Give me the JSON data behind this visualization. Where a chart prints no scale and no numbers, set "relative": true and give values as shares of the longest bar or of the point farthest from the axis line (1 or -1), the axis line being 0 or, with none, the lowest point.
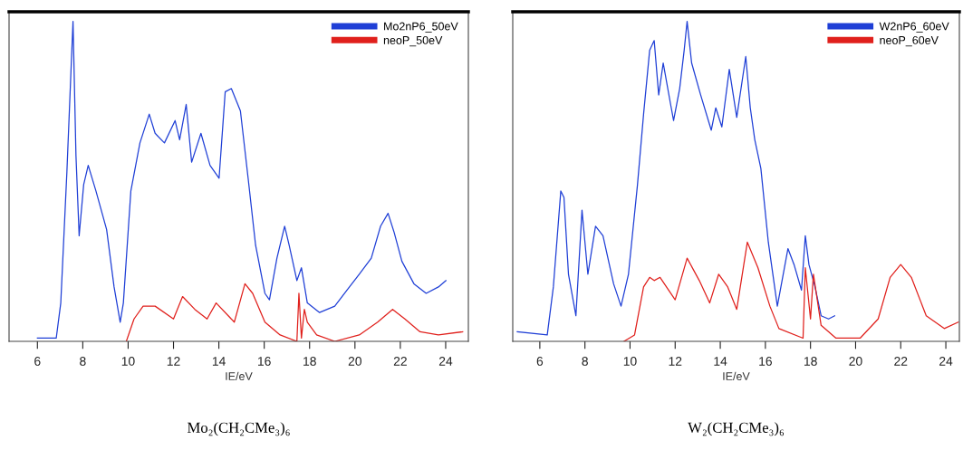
{
  "chart_data": [
    {
      "type": "line",
      "relative": true,
      "xlabel": "IE/eV",
      "annotations": [
        "Mo₂(CH₂CMe₃)₆"
      ],
      "xlim": [
        4.75,
        25.0
      ],
      "xticks": [
        6,
        8,
        10,
        12,
        14,
        16,
        18,
        20,
        22,
        24
      ],
      "legend": "top right",
      "grid": false,
      "marker": "none",
      "line_style": "solid",
      "series": [
        {
          "name": "Mo2nP6_50eV",
          "color": "#1f3fd6",
          "x": [
            6.0,
            6.83,
            7.03,
            7.3,
            7.5,
            7.57,
            7.7,
            7.84,
            8.04,
            8.24,
            8.58,
            9.05,
            9.38,
            9.65,
            9.79,
            10.12,
            10.52,
            10.93,
            11.19,
            11.6,
            12.07,
            12.27,
            12.56,
            12.8,
            13.21,
            13.61,
            14.01,
            14.28,
            14.55,
            14.95,
            15.29,
            15.62,
            16.03,
            16.23,
            16.56,
            16.9,
            17.1,
            17.44,
            17.64,
            17.9,
            18.44,
            19.11,
            19.65,
            20.19,
            20.72,
            21.13,
            21.46,
            21.73,
            22.07,
            22.6,
            23.14,
            23.68,
            24.01
          ],
          "values": [
            0.01,
            0.01,
            0.12,
            0.53,
            0.88,
            1.0,
            0.58,
            0.33,
            0.49,
            0.55,
            0.47,
            0.35,
            0.17,
            0.06,
            0.12,
            0.47,
            0.62,
            0.71,
            0.65,
            0.62,
            0.69,
            0.63,
            0.74,
            0.56,
            0.65,
            0.55,
            0.51,
            0.78,
            0.79,
            0.72,
            0.51,
            0.3,
            0.15,
            0.13,
            0.26,
            0.36,
            0.3,
            0.19,
            0.23,
            0.12,
            0.09,
            0.11,
            0.16,
            0.21,
            0.26,
            0.36,
            0.4,
            0.34,
            0.25,
            0.18,
            0.15,
            0.17,
            0.19
          ]
        },
        {
          "name": "neoP_50eV",
          "color": "#e0201c",
          "x": [
            9.92,
            10.26,
            10.66,
            11.19,
            12.0,
            12.4,
            12.94,
            13.48,
            13.88,
            14.68,
            15.15,
            15.49,
            16.03,
            16.7,
            17.44,
            17.53,
            17.64,
            17.77,
            17.9,
            18.31,
            19.11,
            20.19,
            21.0,
            21.66,
            22.2,
            22.87,
            23.68,
            24.75
          ],
          "values": [
            0.0,
            0.07,
            0.11,
            0.11,
            0.07,
            0.14,
            0.1,
            0.07,
            0.12,
            0.06,
            0.18,
            0.15,
            0.06,
            0.02,
            0.0,
            0.15,
            0.01,
            0.1,
            0.06,
            0.02,
            0.0,
            0.02,
            0.06,
            0.1,
            0.07,
            0.03,
            0.02,
            0.03
          ]
        }
      ]
    },
    {
      "type": "line",
      "relative": true,
      "xlabel": "IE/eV",
      "annotations": [
        "W₂(CH₂CMe₃)₆"
      ],
      "xlim": [
        4.8,
        24.6
      ],
      "xticks": [
        6,
        8,
        10,
        12,
        14,
        16,
        18,
        20,
        22,
        24
      ],
      "legend": "top right",
      "grid": false,
      "marker": "none",
      "line_style": "solid",
      "series": [
        {
          "name": "W2nP6_60eV",
          "color": "#1f3fd6",
          "x": [
            5.0,
            6.33,
            6.6,
            6.93,
            7.07,
            7.27,
            7.6,
            7.87,
            8.13,
            8.47,
            8.8,
            9.27,
            9.6,
            9.93,
            10.33,
            10.6,
            10.87,
            11.07,
            11.27,
            11.47,
            11.8,
            11.93,
            12.2,
            12.4,
            12.53,
            12.73,
            13.13,
            13.6,
            13.8,
            14.07,
            14.4,
            14.73,
            15.13,
            15.33,
            15.53,
            15.8,
            16.13,
            16.53,
            17.0,
            17.27,
            17.6,
            17.77,
            17.93,
            18.2,
            18.47,
            18.8,
            19.07
          ],
          "values": [
            0.03,
            0.02,
            0.17,
            0.47,
            0.45,
            0.21,
            0.08,
            0.41,
            0.21,
            0.36,
            0.33,
            0.18,
            0.11,
            0.21,
            0.49,
            0.71,
            0.91,
            0.94,
            0.77,
            0.87,
            0.74,
            0.69,
            0.79,
            0.91,
            1.0,
            0.87,
            0.77,
            0.66,
            0.73,
            0.67,
            0.85,
            0.7,
            0.89,
            0.73,
            0.63,
            0.54,
            0.31,
            0.11,
            0.29,
            0.24,
            0.16,
            0.33,
            0.24,
            0.17,
            0.08,
            0.07,
            0.08
          ]
        },
        {
          "name": "neoP_60eV",
          "color": "#e0201c",
          "x": [
            9.73,
            10.2,
            10.6,
            10.87,
            11.07,
            11.33,
            12.0,
            12.53,
            13.07,
            13.53,
            13.93,
            14.33,
            14.73,
            15.2,
            15.67,
            16.2,
            16.6,
            17.67,
            17.77,
            18.0,
            18.13,
            18.47,
            19.13,
            20.2,
            21.0,
            21.53,
            22.0,
            22.47,
            23.13,
            23.93,
            24.55
          ],
          "values": [
            0.0,
            0.02,
            0.17,
            0.2,
            0.19,
            0.2,
            0.13,
            0.26,
            0.19,
            0.12,
            0.21,
            0.17,
            0.1,
            0.31,
            0.23,
            0.11,
            0.04,
            0.01,
            0.23,
            0.07,
            0.21,
            0.05,
            0.01,
            0.01,
            0.07,
            0.2,
            0.24,
            0.2,
            0.08,
            0.04,
            0.06
          ]
        }
      ]
    }
  ]
}
